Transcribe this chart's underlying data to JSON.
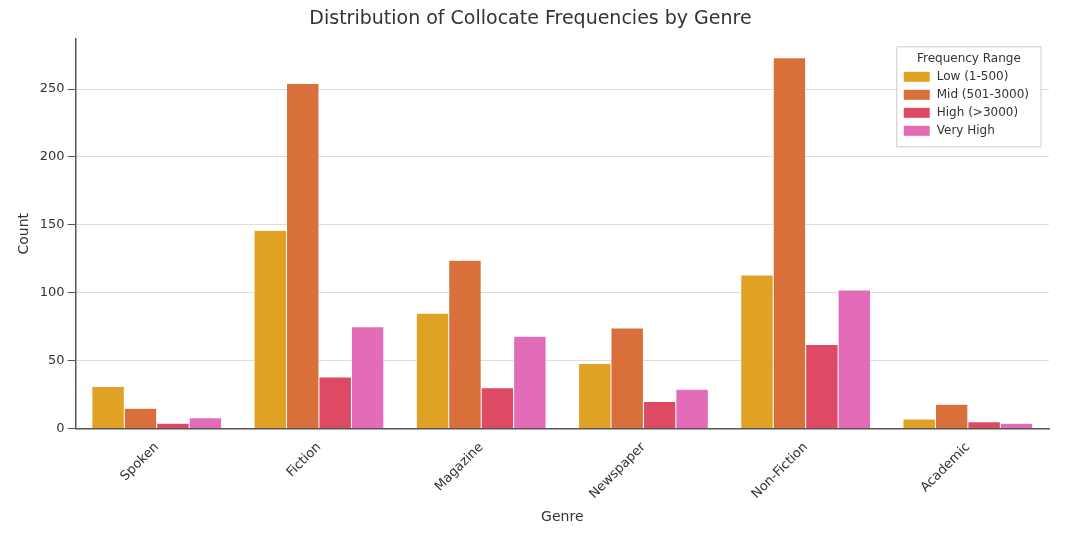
{
  "chart_data": {
    "type": "bar",
    "title": "Distribution of Collocate Frequencies by Genre",
    "xlabel": "Genre",
    "ylabel": "Count",
    "legend_title": "Frequency Range",
    "categories": [
      "Spoken",
      "Fiction",
      "Magazine",
      "Newspaper",
      "Non-Fiction",
      "Academic"
    ],
    "series": [
      {
        "name": "Low (1-500)",
        "color": "#dfa224",
        "values": [
          31,
          146,
          85,
          48,
          113,
          7
        ]
      },
      {
        "name": "Mid (501-3000)",
        "color": "#d9703b",
        "values": [
          15,
          254,
          124,
          74,
          273,
          18
        ]
      },
      {
        "name": "High (>3000)",
        "color": "#dc4a64",
        "values": [
          4,
          38,
          30,
          20,
          62,
          5
        ]
      },
      {
        "name": "Very High",
        "color": "#e36cb8",
        "values": [
          8,
          75,
          68,
          29,
          102,
          4
        ]
      }
    ],
    "ylim": [
      0,
      287
    ],
    "yticks": [
      0,
      50,
      100,
      150,
      200,
      250
    ],
    "grid": "y",
    "legend": "top right"
  }
}
